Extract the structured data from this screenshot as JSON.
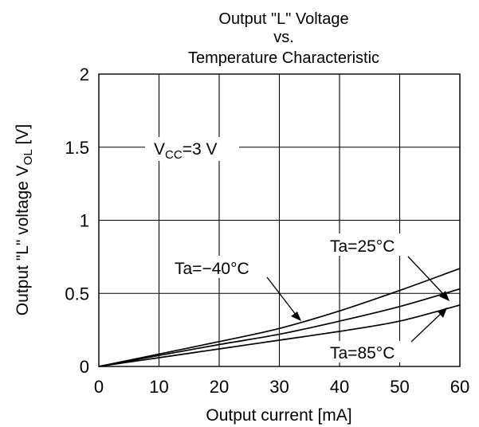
{
  "chart_data": {
    "type": "line",
    "title_lines": [
      "Output \"L\" Voltage",
      "vs.",
      "Temperature Characteristic"
    ],
    "xlabel": "Output current [mA]",
    "ylabel_main": "Output \"L\" voltage V",
    "ylabel_sub": "OL",
    "ylabel_unit": " [V]",
    "xlim": [
      0,
      60
    ],
    "ylim": [
      0,
      2
    ],
    "x_ticks": [
      0,
      10,
      20,
      30,
      40,
      50,
      60
    ],
    "x_tick_labels": [
      "0",
      "10",
      "20",
      "30",
      "40",
      "50",
      "60"
    ],
    "y_ticks": [
      0,
      0.5,
      1,
      1.5,
      2
    ],
    "y_tick_labels": [
      "0",
      "0.5",
      "1",
      "1.5",
      "2"
    ],
    "grid": true,
    "condition": {
      "main": "V",
      "sub": "CC",
      "rest": "=3 V"
    },
    "series": [
      {
        "name": "Ta=−40°C",
        "x": [
          0,
          10,
          20,
          30,
          40,
          50,
          60
        ],
        "y": [
          0,
          0.085,
          0.17,
          0.26,
          0.38,
          0.52,
          0.67
        ]
      },
      {
        "name": "Ta=25°C",
        "x": [
          0,
          10,
          20,
          30,
          40,
          50,
          60
        ],
        "y": [
          0,
          0.075,
          0.15,
          0.22,
          0.31,
          0.41,
          0.53
        ]
      },
      {
        "name": "Ta=85°C",
        "x": [
          0,
          10,
          20,
          30,
          40,
          50,
          60
        ],
        "y": [
          0,
          0.06,
          0.12,
          0.18,
          0.24,
          0.31,
          0.42
        ]
      }
    ]
  }
}
